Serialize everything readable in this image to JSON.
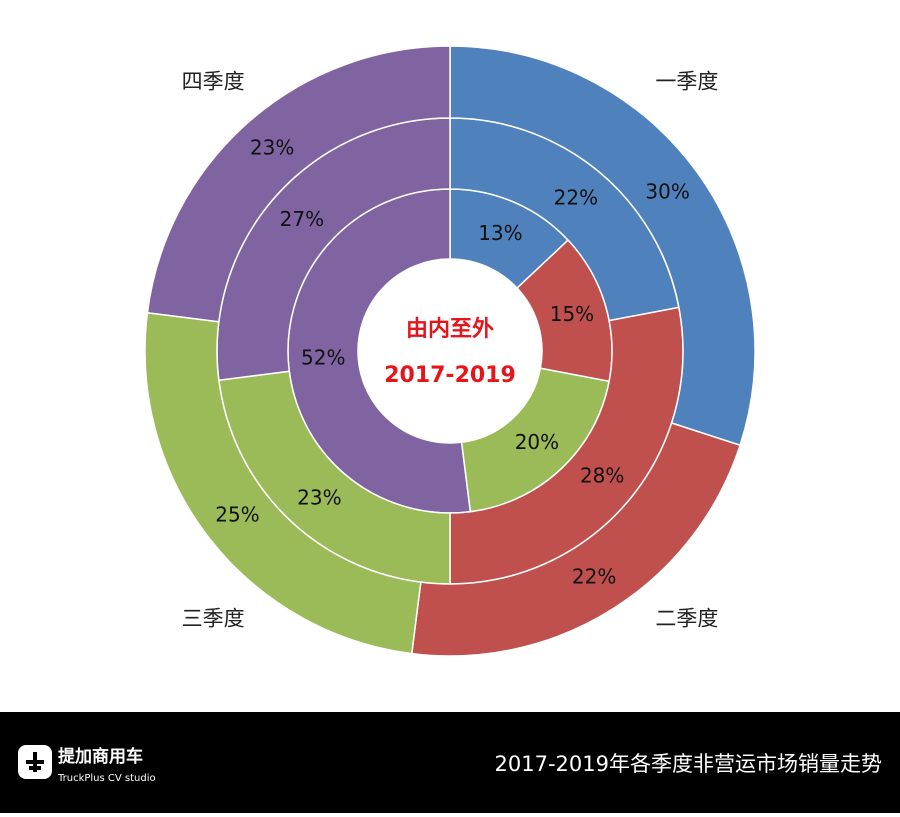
{
  "chart_data": {
    "type": "donut",
    "categories": [
      "一季度",
      "二季度",
      "三季度",
      "四季度"
    ],
    "colors": [
      "#4f81bd",
      "#c0504d",
      "#9bbb59",
      "#8064a2"
    ],
    "center_text": [
      "由内至外",
      "2017-2019"
    ],
    "series": [
      {
        "values": [
          13,
          15,
          20,
          52
        ],
        "value_labels": [
          "13%",
          "15%",
          "20%",
          "52%"
        ]
      },
      {
        "values": [
          22,
          28,
          23,
          27
        ],
        "value_labels": [
          "22%",
          "28%",
          "23%",
          "27%"
        ]
      },
      {
        "values": [
          30,
          22,
          25,
          23
        ],
        "value_labels": [
          "30%",
          "22%",
          "25%",
          "23%"
        ]
      }
    ]
  },
  "footer": {
    "caption": "2017-2019年各季度非营运市场销量走势",
    "brand": "提加商用车",
    "brand_sub": "TruckPlus CV studio"
  }
}
